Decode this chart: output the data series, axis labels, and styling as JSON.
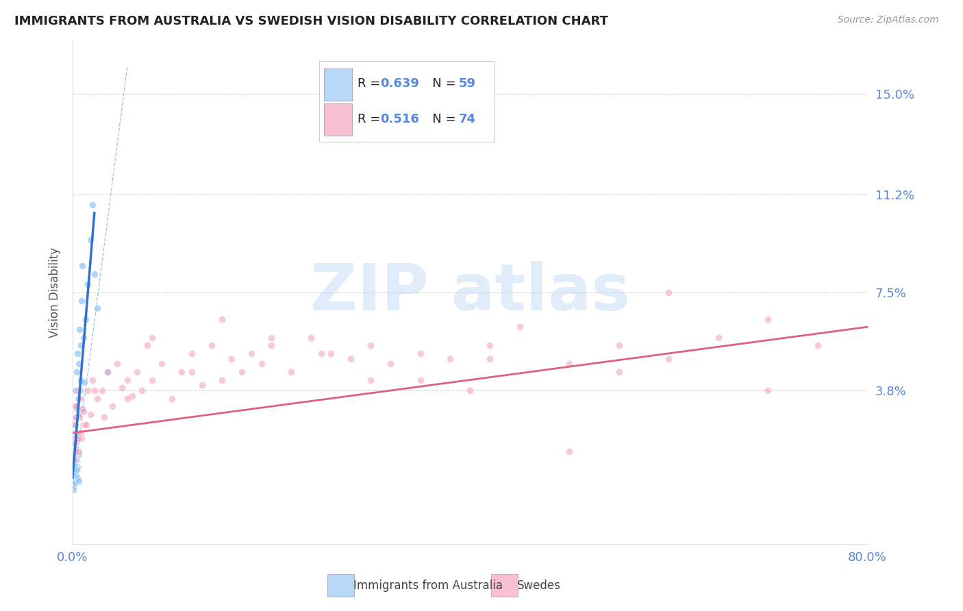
{
  "title": "IMMIGRANTS FROM AUSTRALIA VS SWEDISH VISION DISABILITY CORRELATION CHART",
  "source": "Source: ZipAtlas.com",
  "ylabel": "Vision Disability",
  "ytick_values": [
    3.8,
    7.5,
    11.2,
    15.0
  ],
  "ytick_labels": [
    "3.8%",
    "7.5%",
    "11.2%",
    "15.0%"
  ],
  "xlim": [
    0.0,
    80.0
  ],
  "ylim": [
    -2.0,
    17.0
  ],
  "blue_scatter": [
    [
      0.05,
      0.1
    ],
    [
      0.08,
      0.3
    ],
    [
      0.1,
      0.5
    ],
    [
      0.1,
      1.2
    ],
    [
      0.12,
      0.8
    ],
    [
      0.15,
      2.0
    ],
    [
      0.18,
      1.5
    ],
    [
      0.2,
      3.2
    ],
    [
      0.2,
      0.6
    ],
    [
      0.22,
      1.8
    ],
    [
      0.25,
      2.5
    ],
    [
      0.25,
      0.4
    ],
    [
      0.28,
      1.1
    ],
    [
      0.3,
      3.8
    ],
    [
      0.3,
      0.8
    ],
    [
      0.32,
      2.2
    ],
    [
      0.35,
      1.6
    ],
    [
      0.38,
      0.5
    ],
    [
      0.4,
      4.5
    ],
    [
      0.4,
      2.8
    ],
    [
      0.42,
      1.9
    ],
    [
      0.45,
      3.1
    ],
    [
      0.48,
      0.9
    ],
    [
      0.5,
      5.2
    ],
    [
      0.5,
      2.1
    ],
    [
      0.55,
      3.5
    ],
    [
      0.6,
      4.8
    ],
    [
      0.6,
      1.4
    ],
    [
      0.65,
      2.9
    ],
    [
      0.7,
      6.1
    ],
    [
      0.75,
      3.8
    ],
    [
      0.8,
      5.5
    ],
    [
      0.85,
      4.2
    ],
    [
      0.9,
      7.2
    ],
    [
      0.95,
      3.1
    ],
    [
      1.0,
      8.5
    ],
    [
      1.1,
      5.8
    ],
    [
      1.2,
      4.1
    ],
    [
      1.3,
      6.5
    ],
    [
      1.5,
      7.8
    ],
    [
      1.8,
      9.5
    ],
    [
      2.0,
      10.8
    ],
    [
      2.2,
      8.2
    ],
    [
      2.5,
      6.9
    ],
    [
      0.05,
      0.05
    ],
    [
      0.06,
      0.15
    ],
    [
      0.07,
      0.25
    ],
    [
      0.09,
      0.4
    ],
    [
      0.11,
      0.6
    ],
    [
      0.13,
      0.9
    ],
    [
      0.16,
      1.3
    ],
    [
      0.19,
      0.7
    ],
    [
      0.23,
      1.0
    ],
    [
      0.27,
      0.3
    ],
    [
      0.33,
      0.6
    ],
    [
      0.37,
      1.2
    ],
    [
      0.43,
      0.8
    ],
    [
      0.52,
      0.5
    ],
    [
      0.62,
      0.4
    ],
    [
      3.5,
      4.5
    ]
  ],
  "pink_scatter": [
    [
      0.1,
      2.5
    ],
    [
      0.2,
      1.8
    ],
    [
      0.3,
      3.2
    ],
    [
      0.4,
      2.1
    ],
    [
      0.5,
      3.8
    ],
    [
      0.6,
      1.5
    ],
    [
      0.7,
      2.8
    ],
    [
      0.8,
      3.5
    ],
    [
      0.9,
      2.0
    ],
    [
      1.0,
      3.1
    ],
    [
      1.2,
      2.5
    ],
    [
      1.5,
      3.8
    ],
    [
      1.8,
      2.9
    ],
    [
      2.0,
      4.2
    ],
    [
      2.5,
      3.5
    ],
    [
      3.0,
      3.8
    ],
    [
      3.5,
      4.5
    ],
    [
      4.0,
      3.2
    ],
    [
      4.5,
      4.8
    ],
    [
      5.0,
      3.9
    ],
    [
      5.5,
      4.2
    ],
    [
      6.0,
      3.6
    ],
    [
      6.5,
      4.5
    ],
    [
      7.0,
      3.8
    ],
    [
      7.5,
      5.5
    ],
    [
      8.0,
      4.2
    ],
    [
      9.0,
      4.8
    ],
    [
      10.0,
      3.5
    ],
    [
      11.0,
      4.5
    ],
    [
      12.0,
      5.2
    ],
    [
      13.0,
      4.0
    ],
    [
      14.0,
      5.5
    ],
    [
      15.0,
      4.2
    ],
    [
      16.0,
      5.0
    ],
    [
      17.0,
      4.5
    ],
    [
      18.0,
      5.2
    ],
    [
      19.0,
      4.8
    ],
    [
      20.0,
      5.5
    ],
    [
      22.0,
      4.5
    ],
    [
      24.0,
      5.8
    ],
    [
      26.0,
      5.2
    ],
    [
      28.0,
      5.0
    ],
    [
      30.0,
      5.5
    ],
    [
      32.0,
      4.8
    ],
    [
      35.0,
      5.2
    ],
    [
      38.0,
      5.0
    ],
    [
      40.0,
      3.8
    ],
    [
      42.0,
      5.5
    ],
    [
      45.0,
      6.2
    ],
    [
      50.0,
      4.8
    ],
    [
      55.0,
      5.5
    ],
    [
      60.0,
      5.0
    ],
    [
      65.0,
      5.8
    ],
    [
      70.0,
      6.5
    ],
    [
      75.0,
      5.5
    ],
    [
      0.15,
      1.2
    ],
    [
      0.25,
      2.8
    ],
    [
      0.35,
      1.5
    ],
    [
      0.45,
      3.2
    ],
    [
      0.55,
      2.0
    ],
    [
      0.65,
      3.5
    ],
    [
      0.85,
      2.2
    ],
    [
      1.1,
      3.0
    ],
    [
      1.4,
      2.5
    ],
    [
      2.2,
      3.8
    ],
    [
      3.2,
      2.8
    ],
    [
      5.5,
      3.5
    ],
    [
      8.0,
      5.8
    ],
    [
      12.0,
      4.5
    ],
    [
      20.0,
      5.8
    ],
    [
      30.0,
      4.2
    ],
    [
      42.0,
      5.0
    ],
    [
      55.0,
      4.5
    ],
    [
      60.0,
      7.5
    ],
    [
      70.0,
      3.8
    ],
    [
      15.0,
      6.5
    ],
    [
      25.0,
      5.2
    ],
    [
      35.0,
      4.2
    ],
    [
      50.0,
      1.5
    ]
  ],
  "blue_line_x": [
    0.0,
    2.2
  ],
  "blue_line_y": [
    0.5,
    10.5
  ],
  "pink_line_x": [
    0.0,
    80.0
  ],
  "pink_line_y": [
    2.2,
    6.2
  ],
  "dashed_line_x": [
    0.0,
    5.5
  ],
  "dashed_line_y": [
    0.0,
    16.0
  ],
  "blue_color": "#90c4f0",
  "pink_color": "#f0a0b8",
  "blue_line_color": "#3070d0",
  "pink_line_color": "#e06080",
  "dashed_color": "#90b8e8",
  "grid_color": "#cccccc",
  "tick_label_color": "#5588dd",
  "title_color": "#222222",
  "background_color": "#ffffff",
  "watermark_color": "#c8ddf5",
  "legend_blue_color": "#b8d8f8",
  "legend_pink_color": "#f8c0d0"
}
